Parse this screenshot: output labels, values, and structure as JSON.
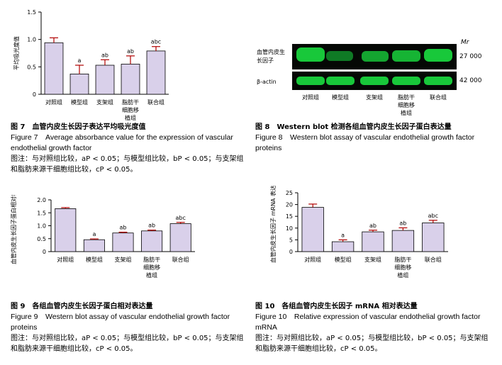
{
  "chart_data": [
    {
      "id": "fig7",
      "type": "bar",
      "ylabel": "平均吸光度值",
      "categories": [
        "对照组",
        "模型组",
        "支架组",
        "脂肪干细胞移植组",
        "联合组"
      ],
      "values": [
        0.94,
        0.37,
        0.53,
        0.55,
        0.79
      ],
      "errors": [
        0.09,
        0.16,
        0.1,
        0.15,
        0.08
      ],
      "annotations": [
        "",
        "a",
        "ab",
        "ab",
        "abc"
      ],
      "ylim": [
        0,
        1.5
      ],
      "yticks": [
        "0",
        "0.5",
        "1.0",
        "1.5"
      ]
    },
    {
      "id": "fig9",
      "type": "bar",
      "ylabel": "血管内皮生长因子蛋白相对表达",
      "categories": [
        "对照组",
        "模型组",
        "支架组",
        "脂肪干细胞移植组",
        "联合组"
      ],
      "values": [
        1.66,
        0.46,
        0.72,
        0.8,
        1.08
      ],
      "errors": [
        0.04,
        0.03,
        0.03,
        0.03,
        0.05
      ],
      "annotations": [
        "",
        "a",
        "ab",
        "ab",
        "abc"
      ],
      "ylim": [
        0,
        2.0
      ],
      "yticks": [
        "0",
        "0.5",
        "1.0",
        "1.5",
        "2.0"
      ]
    },
    {
      "id": "fig10",
      "type": "bar",
      "ylabel": "血管内皮生长因子 mRNA 表达量",
      "categories": [
        "对照组",
        "模型组",
        "支架组",
        "脂肪干细胞移植组",
        "联合组"
      ],
      "values": [
        18.8,
        4.2,
        8.4,
        9.0,
        12.2
      ],
      "errors": [
        1.4,
        0.8,
        0.7,
        1.1,
        1.1
      ],
      "annotations": [
        "",
        "a",
        "ab",
        "ab",
        "abc"
      ],
      "ylim": [
        0,
        25
      ],
      "yticks": [
        "0",
        "5",
        "10",
        "15",
        "20",
        "25"
      ]
    }
  ],
  "western_blot": {
    "mr_label": "Mr",
    "rows": [
      {
        "name": "血管内皮生长因子",
        "mw": "27 000"
      },
      {
        "name": "β-actin",
        "mw": "42 000"
      }
    ],
    "lanes": [
      "对照组",
      "模型组",
      "支架组",
      "脂肪干细胞移植组",
      "联合组"
    ]
  },
  "captions": {
    "fig7": {
      "title": "图 7　血管内皮生长因子表达平均吸光度值",
      "en": "Figure 7　Average absorbance value for the expression of vascular endothelial growth factor",
      "note": "图注：与对照组比较，aP < 0.05；与模型组比较，bP < 0.05；与支架组和脂肪来源干细胞组比较，cP < 0.05。"
    },
    "fig8": {
      "title": "图 8　Western blot 检测各组血管内皮生长因子蛋白表达量",
      "en": "Figure 8　Western blot assay of vascular endothelial growth factor proteins"
    },
    "fig9": {
      "title": "图 9　各组血管内皮生长因子蛋白相对表达量",
      "en": "Figure 9　Western blot assay of vascular endothelial growth factor proteins",
      "note": "图注：与对照组比较，aP < 0.05；与模型组比较，bP < 0.05；与支架组和脂肪来源干细胞组比较，cP < 0.05。"
    },
    "fig10": {
      "title": "图 10　各组血管内皮生长因子 mRNA 相对表达量",
      "en": "Figure 10　Relative expression of vascular endothelial growth factor mRNA",
      "note": "图注：与对照组比较，aP < 0.05；与模型组比较，bP < 0.05；与支架组和脂肪来源干细胞组比较，cP < 0.05。"
    }
  },
  "colors": {
    "bar_fill": "#d9d0ea",
    "bar_stroke": "#000000",
    "error_bar": "#b00000",
    "blot_bg": "#050805",
    "band": "#18c83a"
  }
}
